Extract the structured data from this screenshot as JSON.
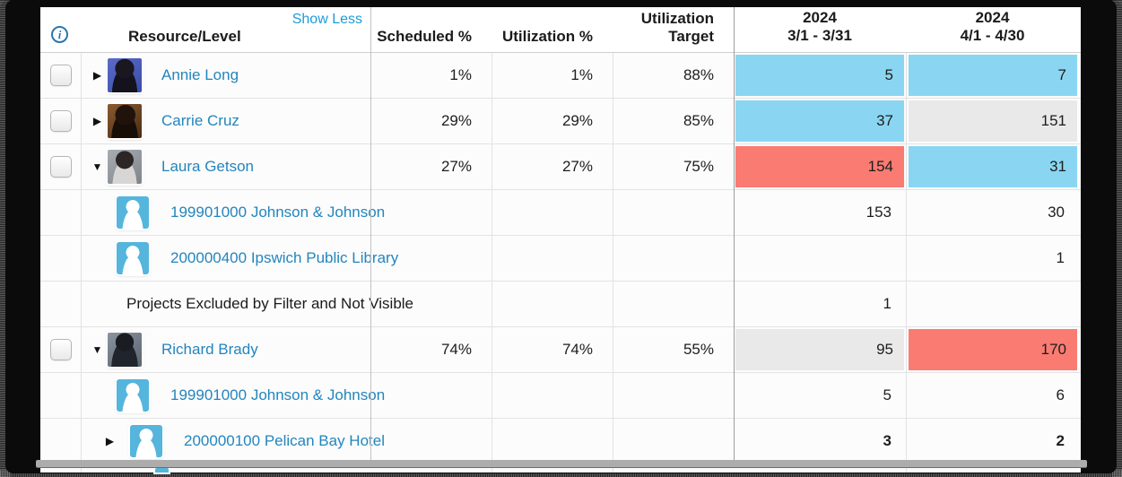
{
  "header": {
    "resource_level": "Resource/Level",
    "show_less": "Show Less",
    "scheduled": "Scheduled %",
    "utilization": "Utilization %",
    "target_line1": "Utilization",
    "target_line2": "Target",
    "periods": [
      {
        "year": "2024",
        "range": "3/1 - 3/31"
      },
      {
        "year": "2024",
        "range": "4/1 - 4/30"
      }
    ]
  },
  "colors": {
    "measure_blue": "#8ad6f2",
    "measure_red": "#f97b72",
    "measure_gray": "#e9e9e9",
    "link": "#2385bd",
    "show_less": "#1f9bd7",
    "header_text": "#1b1b1b",
    "value_text": "#1d1d1d",
    "info": "#2a76ad",
    "proj_icon": "#55b5dc"
  },
  "rows": [
    {
      "type": "person",
      "caret": "collapsed",
      "avatar": "annie-long",
      "name": "Annie Long",
      "scheduled": "1%",
      "utilization": "1%",
      "target": "88%",
      "measures": [
        {
          "value": "5",
          "color": "blue"
        },
        {
          "value": "7",
          "color": "blue"
        }
      ]
    },
    {
      "type": "person",
      "caret": "collapsed",
      "avatar": "carrie-cruz",
      "name": "Carrie Cruz",
      "scheduled": "29%",
      "utilization": "29%",
      "target": "85%",
      "measures": [
        {
          "value": "37",
          "color": "blue"
        },
        {
          "value": "151",
          "color": "gray"
        }
      ]
    },
    {
      "type": "person",
      "caret": "expanded",
      "avatar": "laura-getson",
      "name": "Laura Getson",
      "scheduled": "27%",
      "utilization": "27%",
      "target": "75%",
      "measures": [
        {
          "value": "154",
          "color": "red"
        },
        {
          "value": "31",
          "color": "blue"
        }
      ]
    },
    {
      "type": "project",
      "name": "199901000 Johnson & Johnson",
      "scheduled": "",
      "utilization": "",
      "target": "",
      "measures": [
        {
          "value": "153"
        },
        {
          "value": "30"
        }
      ]
    },
    {
      "type": "project",
      "name": "200000400 Ipswich Public Library",
      "scheduled": "",
      "utilization": "",
      "target": "",
      "measures": [
        {
          "value": ""
        },
        {
          "value": "1"
        }
      ]
    },
    {
      "type": "excluded",
      "name": "Projects Excluded by Filter and Not Visible",
      "scheduled": "",
      "utilization": "",
      "target": "",
      "measures": [
        {
          "value": "1"
        },
        {
          "value": ""
        }
      ]
    },
    {
      "type": "person",
      "caret": "expanded",
      "avatar": "richard-brady",
      "name": "Richard Brady",
      "scheduled": "74%",
      "utilization": "74%",
      "target": "55%",
      "measures": [
        {
          "value": "95",
          "color": "gray"
        },
        {
          "value": "170",
          "color": "red"
        }
      ]
    },
    {
      "type": "project",
      "name": "199901000 Johnson & Johnson",
      "scheduled": "",
      "utilization": "",
      "target": "",
      "measures": [
        {
          "value": "5"
        },
        {
          "value": "6"
        }
      ]
    },
    {
      "type": "project",
      "caret": "collapsed",
      "name": "200000100 Pelican Bay Hotel",
      "scheduled": "",
      "utilization": "",
      "target": "",
      "measures": [
        {
          "value": "3",
          "bold": true
        },
        {
          "value": "2",
          "bold": true
        }
      ]
    }
  ]
}
